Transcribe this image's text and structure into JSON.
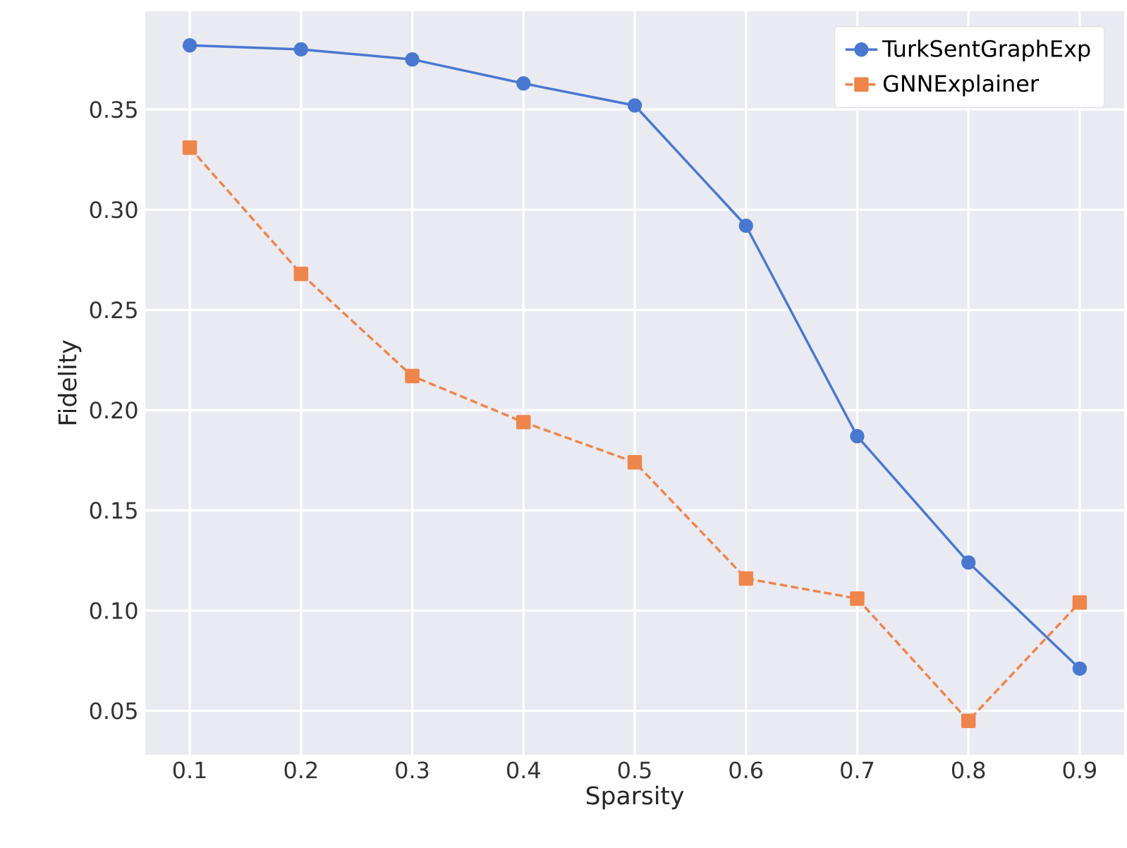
{
  "chart_data": {
    "type": "line",
    "xlabel": "Sparsity",
    "ylabel": "Fidelity",
    "x": [
      0.1,
      0.2,
      0.3,
      0.4,
      0.5,
      0.6,
      0.7,
      0.8,
      0.9
    ],
    "series": [
      {
        "name": "TurkSentGraphExp",
        "color": "#4878d0",
        "marker": "circle",
        "line_style": "solid",
        "values": [
          0.382,
          0.38,
          0.375,
          0.363,
          0.352,
          0.292,
          0.187,
          0.124,
          0.071
        ]
      },
      {
        "name": "GNNExplainer",
        "color": "#ee854a",
        "marker": "square",
        "line_style": "dashed",
        "values": [
          0.331,
          0.268,
          0.217,
          0.194,
          0.174,
          0.116,
          0.106,
          0.045,
          0.104
        ]
      }
    ],
    "xlim": [
      0.06,
      0.94
    ],
    "ylim": [
      0.028,
      0.399
    ],
    "xticks": [
      0.1,
      0.2,
      0.3,
      0.4,
      0.5,
      0.6,
      0.7,
      0.8,
      0.9
    ],
    "yticks": [
      0.05,
      {
        "value": 0.1,
        "label": "0.10"
      },
      0.15,
      {
        "value": 0.2,
        "label": "0.20"
      },
      0.25,
      {
        "value": 0.3,
        "label": "0.30"
      },
      0.35
    ],
    "grid": true,
    "legend": "top right"
  }
}
